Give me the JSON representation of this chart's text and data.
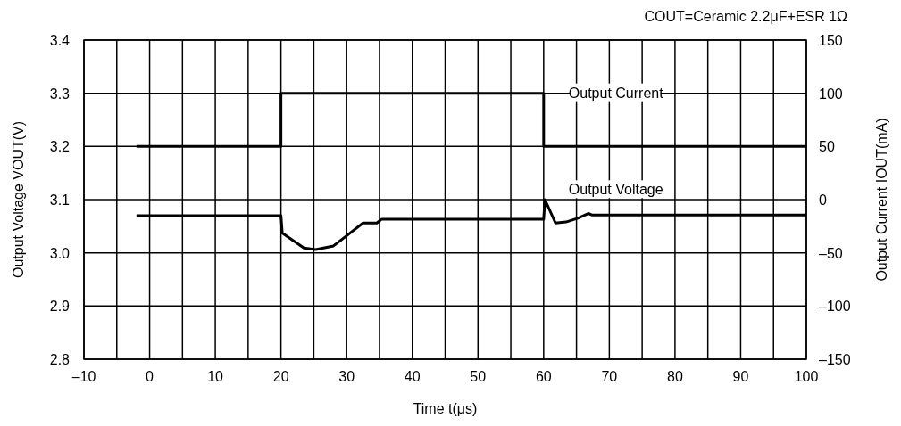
{
  "chart_data": {
    "type": "line",
    "title": "COUT=Ceramic 2.2μF+ESR 1Ω",
    "xlabel": "Time t(μs)",
    "ylabel": "Output Voltage VOUT(V)",
    "y2label": "Output Current IOUT(mA)",
    "xlim": [
      -10,
      100
    ],
    "xticks": [
      {
        "value": -10,
        "label": "–10"
      },
      {
        "value": -5,
        "label": null
      },
      0,
      {
        "value": 5,
        "label": null
      },
      10,
      {
        "value": 15,
        "label": null
      },
      20,
      {
        "value": 25,
        "label": null
      },
      30,
      {
        "value": 35,
        "label": null
      },
      40,
      {
        "value": 45,
        "label": null
      },
      50,
      {
        "value": 55,
        "label": null
      },
      60,
      {
        "value": 65,
        "label": null
      },
      70,
      {
        "value": 75,
        "label": null
      },
      80,
      {
        "value": 85,
        "label": null
      },
      90,
      {
        "value": 95,
        "label": null
      },
      100
    ],
    "ylim": [
      2.8,
      3.4
    ],
    "yticks": [
      {
        "value": 2.8,
        "label": "2.8"
      },
      {
        "value": 2.9,
        "label": "2.9"
      },
      {
        "value": 3.0,
        "label": "3.0"
      },
      {
        "value": 3.1,
        "label": "3.1"
      },
      {
        "value": 3.2,
        "label": "3.2"
      },
      {
        "value": 3.3,
        "label": "3.3"
      },
      {
        "value": 3.4,
        "label": "3.4"
      }
    ],
    "y2lim": [
      -150,
      150
    ],
    "y2ticks": [
      {
        "value": -150,
        "label": "–150"
      },
      {
        "value": -100,
        "label": "–100"
      },
      {
        "value": -50,
        "label": "–50"
      },
      0,
      50,
      100,
      150
    ],
    "grid": true,
    "line_style": "solid",
    "marker": "none",
    "series": [
      {
        "name": "Output Current",
        "color": "#000000",
        "axis": "y2",
        "x": [
          -2,
          20,
          20,
          60,
          60,
          100
        ],
        "values": [
          50,
          50,
          100,
          100,
          50,
          50
        ]
      },
      {
        "name": "Output Voltage",
        "color": "#000000",
        "x": [
          -2,
          20,
          20.2,
          23.5,
          25.3,
          28,
          32.5,
          34.6,
          35.3,
          60,
          60.2,
          61.8,
          63.4,
          65.2,
          66.8,
          67.4,
          100
        ],
        "values": [
          3.07,
          3.07,
          3.037,
          3.009,
          3.006,
          3.013,
          3.056,
          3.056,
          3.063,
          3.063,
          3.1,
          3.056,
          3.058,
          3.065,
          3.074,
          3.071,
          3.071
        ]
      }
    ]
  }
}
